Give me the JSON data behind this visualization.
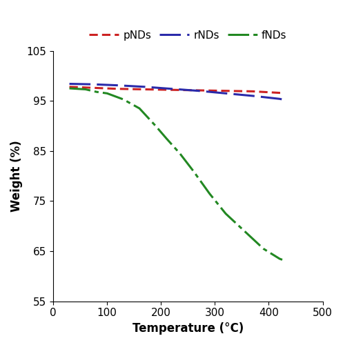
{
  "title": "",
  "xlabel": "Temperature (°C)",
  "ylabel": "Weight (%)",
  "xlim": [
    0,
    500
  ],
  "ylim": [
    55,
    105
  ],
  "xticks": [
    0,
    100,
    200,
    300,
    400,
    500
  ],
  "yticks": [
    55,
    65,
    75,
    85,
    95,
    105
  ],
  "legend_labels": [
    "pNDs",
    "rNDs",
    "fNDs"
  ],
  "pNDs_x": [
    30,
    75,
    120,
    170,
    220,
    270,
    320,
    370,
    420,
    425
  ],
  "pNDs_y": [
    97.8,
    97.6,
    97.4,
    97.3,
    97.2,
    97.1,
    97.0,
    96.9,
    96.6,
    96.6
  ],
  "rNDs_x": [
    30,
    75,
    120,
    170,
    220,
    270,
    320,
    370,
    420,
    425
  ],
  "rNDs_y": [
    98.4,
    98.3,
    98.1,
    97.8,
    97.4,
    97.0,
    96.5,
    96.0,
    95.4,
    95.3
  ],
  "fNDs_x": [
    30,
    60,
    80,
    100,
    130,
    160,
    190,
    210,
    235,
    260,
    290,
    320,
    360,
    390,
    420,
    425
  ],
  "fNDs_y": [
    97.5,
    97.3,
    96.8,
    96.5,
    95.3,
    93.5,
    90.0,
    87.5,
    84.5,
    81.0,
    76.5,
    72.5,
    68.5,
    65.5,
    63.5,
    63.3
  ],
  "pNDs_color": "#cc2222",
  "rNDs_color": "#2a2aaa",
  "fNDs_color": "#228822",
  "linewidth": 2.2,
  "figsize": [
    4.97,
    5.0
  ],
  "dpi": 100
}
